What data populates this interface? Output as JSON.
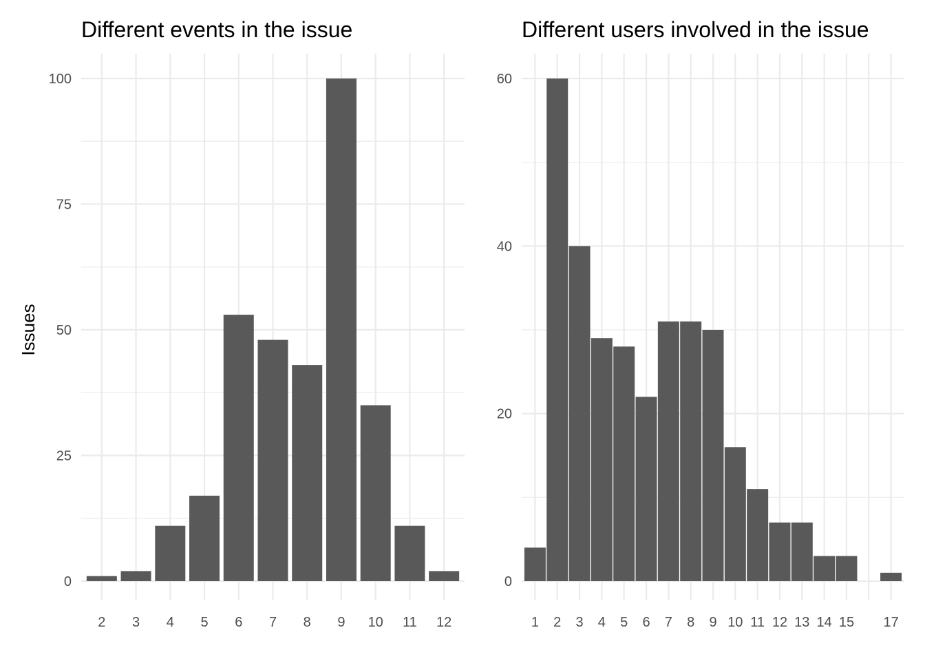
{
  "shared": {
    "ylabel": "Issues"
  },
  "chart_data": [
    {
      "type": "bar",
      "title": "Different events in the issue",
      "xlabel": "",
      "ylabel": "Issues",
      "categories": [
        "2",
        "3",
        "4",
        "5",
        "6",
        "7",
        "8",
        "9",
        "10",
        "11",
        "12"
      ],
      "values": [
        1,
        2,
        11,
        17,
        53,
        48,
        43,
        100,
        35,
        11,
        2
      ],
      "ylim": [
        0,
        100
      ],
      "yticks": [
        0,
        25,
        50,
        75,
        100
      ],
      "grid": true,
      "color": "#595959"
    },
    {
      "type": "bar",
      "title": "Different users involved in the issue",
      "xlabel": "",
      "ylabel": "",
      "categories": [
        "1",
        "2",
        "3",
        "4",
        "5",
        "6",
        "7",
        "8",
        "9",
        "10",
        "11",
        "12",
        "13",
        "14",
        "15",
        "17"
      ],
      "values": [
        4,
        60,
        40,
        29,
        28,
        22,
        31,
        31,
        30,
        16,
        11,
        7,
        7,
        3,
        3,
        1
      ],
      "ylim": [
        0,
        60
      ],
      "yticks": [
        0,
        20,
        40,
        60
      ],
      "grid": true,
      "color": "#595959"
    }
  ]
}
